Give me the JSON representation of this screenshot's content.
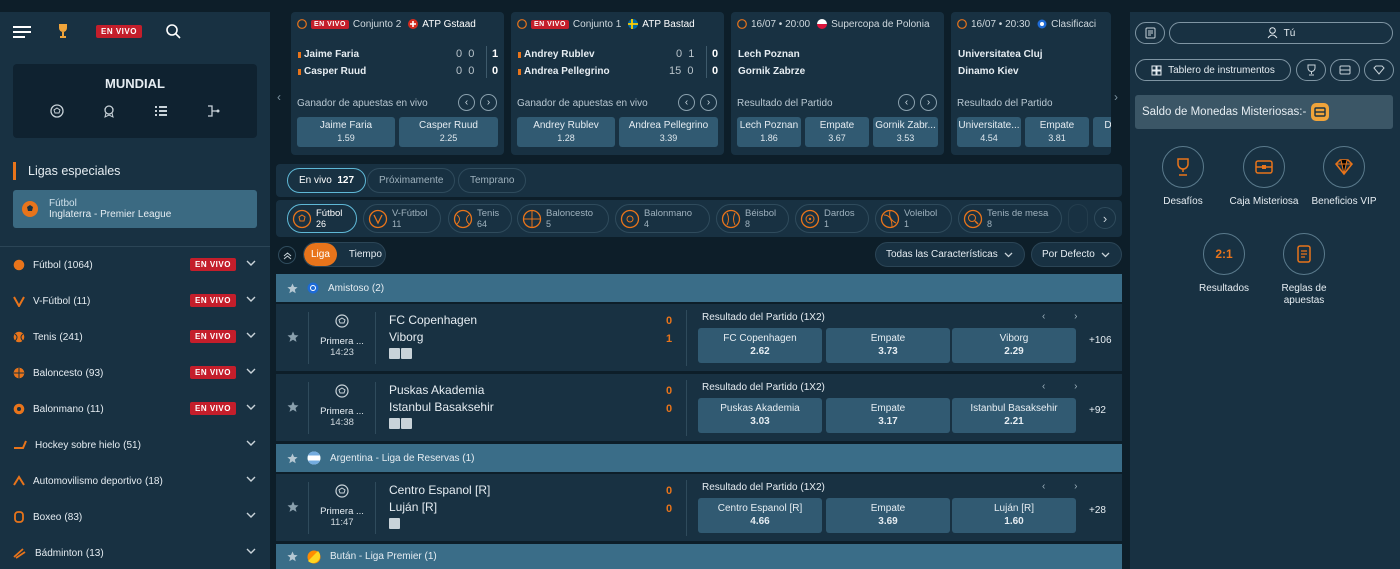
{
  "topnav": {
    "live_label": "EN VIVO"
  },
  "mundial": {
    "title": "MUNDIAL"
  },
  "special": {
    "title": "Ligas especiales",
    "card_sport": "Fútbol",
    "card_league": "Inglaterra - Premier League"
  },
  "sports": [
    {
      "name": "Fútbol",
      "count": "(1064)",
      "live": "EN VIVO"
    },
    {
      "name": "V-Fútbol",
      "count": "(11)",
      "live": "EN VIVO"
    },
    {
      "name": "Tenis",
      "count": "(241)",
      "live": "EN VIVO"
    },
    {
      "name": "Baloncesto",
      "count": "(93)",
      "live": "EN VIVO"
    },
    {
      "name": "Balonmano",
      "count": "(11)",
      "live": "EN VIVO"
    },
    {
      "name": "Hockey sobre hielo",
      "count": "(51)",
      "live": ""
    },
    {
      "name": "Automovilismo deportivo",
      "count": "(18)",
      "live": ""
    },
    {
      "name": "Boxeo",
      "count": "(83)",
      "live": ""
    },
    {
      "name": "Bádminton",
      "count": "(13)",
      "live": ""
    }
  ],
  "matches": [
    {
      "live": "EN VIVO",
      "set": "Conjunto 2",
      "tournament": "ATP Gstaad",
      "team1": "Jaime Faria",
      "team2": "Casper Ruud",
      "score1": [
        "0",
        "0",
        "1"
      ],
      "score2": [
        "0",
        "0",
        "0"
      ],
      "market": "Ganador de apuestas en vivo",
      "odds": [
        {
          "name": "Jaime Faria",
          "price": "1.59"
        },
        {
          "name": "Casper Ruud",
          "price": "2.25"
        }
      ]
    },
    {
      "live": "EN VIVO",
      "set": "Conjunto 1",
      "tournament": "ATP Bastad",
      "team1": "Andrey Rublev",
      "team2": "Andrea Pellegrino",
      "score1": [
        "0",
        "1",
        "0"
      ],
      "score2": [
        "15",
        "0",
        "0"
      ],
      "market": "Ganador de apuestas en vivo",
      "odds": [
        {
          "name": "Andrey Rublev",
          "price": "1.28"
        },
        {
          "name": "Andrea Pellegrino",
          "price": "3.39"
        }
      ]
    },
    {
      "date": "16/07 • 20:00",
      "tournament": "Supercopa de Polonia",
      "team1": "Lech Poznan",
      "team2": "Gornik Zabrze",
      "market": "Resultado del Partido",
      "odds": [
        {
          "name": "Lech Poznan",
          "price": "1.86"
        },
        {
          "name": "Empate",
          "price": "3.67"
        },
        {
          "name": "Gornik Zabr...",
          "price": "3.53"
        }
      ]
    },
    {
      "date": "16/07 • 20:30",
      "tournament": "Clasificaci",
      "team1": "Universitatea Cluj",
      "team2": "Dinamo Kiev",
      "market": "Resultado del Partido",
      "odds": [
        {
          "name": "Universitate...",
          "price": "4.54"
        },
        {
          "name": "Empate",
          "price": "3.81"
        },
        {
          "name": "D",
          "price": ""
        }
      ]
    }
  ],
  "tabs": {
    "live": "En vivo",
    "live_count": "127",
    "upcoming": "Próximamente",
    "early": "Temprano"
  },
  "sport_filters": [
    {
      "name": "Fútbol",
      "count": "26"
    },
    {
      "name": "V-Fútbol",
      "count": "11"
    },
    {
      "name": "Tenis",
      "count": "64"
    },
    {
      "name": "Baloncesto",
      "count": "5"
    },
    {
      "name": "Balonmano",
      "count": "4"
    },
    {
      "name": "Béisbol",
      "count": "8"
    },
    {
      "name": "Dardos",
      "count": "1"
    },
    {
      "name": "Voleibol",
      "count": "1"
    },
    {
      "name": "Tenis de mesa",
      "count": "8"
    }
  ],
  "filters": {
    "liga": "Liga",
    "tiempo": "Tiempo",
    "features": "Todas las Características",
    "sort": "Por Defecto"
  },
  "leagues": [
    "Amistoso (2)",
    "Argentina - Liga de Reservas (1)",
    "Bután - Liga Premier (1)"
  ],
  "events": [
    {
      "league": "Primera ...",
      "time": "14:23",
      "home": "FC Copenhagen",
      "away": "Viborg",
      "hs": "0",
      "as": "1",
      "market": "Resultado del Partido (1X2)",
      "o1n": "FC Copenhagen",
      "o1": "2.62",
      "oxn": "Empate",
      "ox": "3.73",
      "o2n": "Viborg",
      "o2": "2.29",
      "more": "+106"
    },
    {
      "league": "Primera ...",
      "time": "14:38",
      "home": "Puskas Akademia",
      "away": "Istanbul Basaksehir",
      "hs": "0",
      "as": "0",
      "market": "Resultado del Partido (1X2)",
      "o1n": "Puskas Akademia",
      "o1": "3.03",
      "oxn": "Empate",
      "ox": "3.17",
      "o2n": "Istanbul Basaksehir",
      "o2": "2.21",
      "more": "+92"
    },
    {
      "league": "Primera ...",
      "time": "11:47",
      "home": "Centro Espanol [R]",
      "away": "Luján [R]",
      "hs": "0",
      "as": "0",
      "market": "Resultado del Partido (1X2)",
      "o1n": "Centro Espanol [R]",
      "o1": "4.66",
      "oxn": "Empate",
      "ox": "3.69",
      "o2n": "Luján [R]",
      "o2": "1.60",
      "more": "+28"
    }
  ],
  "right": {
    "user": "Tú",
    "dashboard": "Tablero de instrumentos",
    "saldo": "Saldo de Monedas Misteriosas:-",
    "items": [
      "Desafíos",
      "Caja Misteriosa",
      "Beneficios VIP",
      "Resultados",
      "Reglas de apuestas"
    ],
    "results_glyph": "2:1"
  }
}
